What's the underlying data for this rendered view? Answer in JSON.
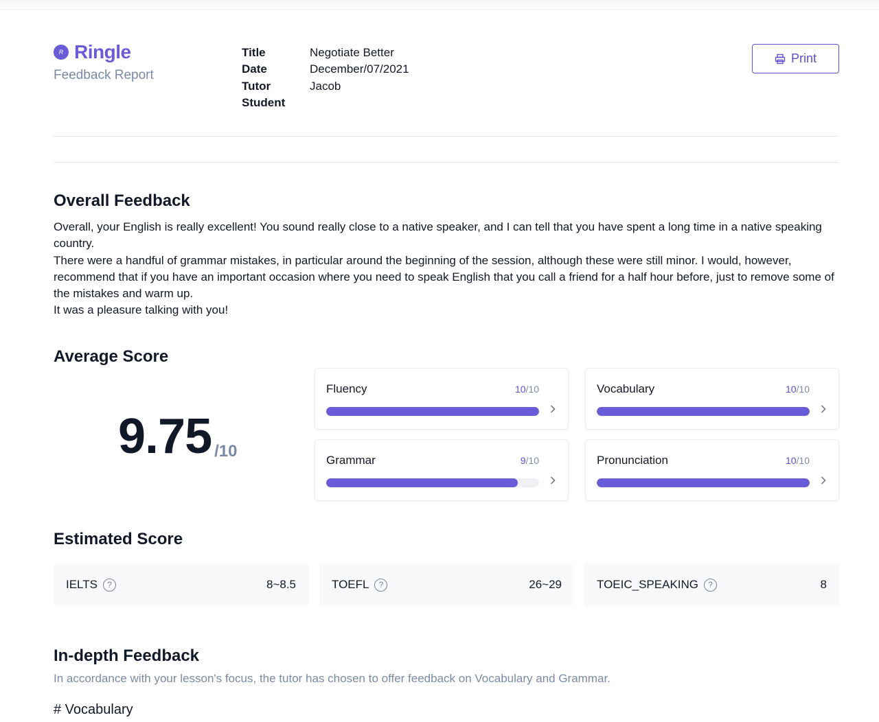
{
  "header": {
    "brand": "Ringle",
    "logo_mark": "R",
    "report_label": "Feedback Report",
    "print_label": "Print"
  },
  "meta": [
    {
      "key": "Title",
      "value": "Negotiate Better"
    },
    {
      "key": "Date",
      "value": "December/07/2021"
    },
    {
      "key": "Tutor",
      "value": "Jacob"
    },
    {
      "key": "Student",
      "value": ""
    }
  ],
  "overall": {
    "title": "Overall Feedback",
    "paragraphs": [
      "Overall, your English is really excellent! You sound really close to a native speaker, and I can tell that you have spent a long time in a native speaking country.",
      "There were a handful of grammar mistakes, in particular around the beginning of the session, although these were still minor. I would, however, recommend that if you have an important occasion where you need to speak English that you call a friend for a half hour before, just to remove some of the mistakes and warm up.",
      "It was a pleasure talking with you!"
    ]
  },
  "average": {
    "title": "Average Score",
    "value": "9.75",
    "denominator": "/10",
    "cards": [
      {
        "label": "Fluency",
        "score": "10",
        "max": "/10",
        "fraction": 1.0
      },
      {
        "label": "Vocabulary",
        "score": "10",
        "max": "/10",
        "fraction": 1.0
      },
      {
        "label": "Grammar",
        "score": "9",
        "max": "/10",
        "fraction": 0.9
      },
      {
        "label": "Pronunciation",
        "score": "10",
        "max": "/10",
        "fraction": 1.0
      }
    ]
  },
  "estimated": {
    "title": "Estimated Score",
    "items": [
      {
        "label": "IELTS",
        "value": "8~8.5"
      },
      {
        "label": "TOEFL",
        "value": "26~29"
      },
      {
        "label": "TOEIC_SPEAKING",
        "value": "8"
      }
    ],
    "help_glyph": "?"
  },
  "indepth": {
    "title": "In-depth Feedback",
    "subtitle": "In accordance with your lesson's focus, the tutor has chosen to offer feedback on Vocabulary and Grammar.",
    "vocab_heading": "# Vocabulary"
  },
  "colors": {
    "accent": "#6a5cd9",
    "muted": "#7a8aa6"
  },
  "icons": {
    "logo": "ringle-logo-icon",
    "print": "printer-icon",
    "help": "question-circle-icon",
    "chevron": "chevron-right-icon"
  }
}
